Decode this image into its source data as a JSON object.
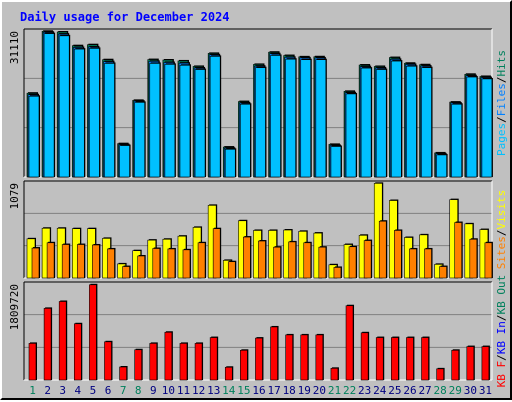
{
  "colors": {
    "background": "#c0c0c0",
    "grid": "#808080",
    "title": "#0000ff",
    "hits": "#00805c",
    "files": "#0080ff",
    "pages": "#00c0ff",
    "visits": "#ffff00",
    "sites": "#ff8000",
    "kbytes": "#ff0000",
    "kbin": "#0000ff",
    "kbout": "#00805c",
    "weekend": "#00805c",
    "weekday": "#000080"
  },
  "chart_data": [
    {
      "type": "bar",
      "title": "Daily usage for December 2024",
      "panel": "top",
      "ymax_label": "31110",
      "ymax": 31110,
      "legend": [
        "Pages",
        "Files",
        "Hits"
      ],
      "categories": [
        "1",
        "2",
        "3",
        "4",
        "5",
        "6",
        "7",
        "8",
        "9",
        "10",
        "11",
        "12",
        "13",
        "14",
        "15",
        "16",
        "17",
        "18",
        "19",
        "20",
        "21",
        "22",
        "23",
        "24",
        "25",
        "26",
        "27",
        "28",
        "29",
        "30",
        "31"
      ],
      "series": [
        {
          "name": "Hits",
          "color": "#00805c",
          "values": [
            17860,
            31050,
            30900,
            27980,
            28190,
            24990,
            7100,
            16330,
            25020,
            24930,
            24730,
            23560,
            26340,
            6380,
            16070,
            23990,
            26590,
            25880,
            25600,
            25620,
            6950,
            18250,
            23860,
            23550,
            25450,
            24240,
            23920,
            5130,
            15960,
            21880,
            21420
          ]
        },
        {
          "name": "Files",
          "color": "#0080ff",
          "values": [
            17530,
            30840,
            30450,
            27600,
            27720,
            24580,
            6900,
            16160,
            24640,
            24400,
            24260,
            23230,
            26040,
            6130,
            15770,
            23620,
            26270,
            25500,
            25380,
            25370,
            6720,
            17960,
            23520,
            23230,
            25070,
            23980,
            23640,
            4930,
            15770,
            21590,
            21190
          ]
        },
        {
          "name": "Pages",
          "color": "#00c0ff",
          "values": [
            17200,
            30550,
            30080,
            27250,
            27400,
            24200,
            6700,
            15900,
            24200,
            24000,
            23800,
            22900,
            25700,
            5900,
            15500,
            23300,
            25900,
            25100,
            25000,
            25000,
            6500,
            17700,
            23200,
            22900,
            24700,
            23600,
            23300,
            4700,
            15500,
            21300,
            20900
          ]
        }
      ]
    },
    {
      "type": "bar",
      "panel": "middle",
      "ymax_label": "1079",
      "ymax": 1079,
      "legend": [
        "Sites",
        "Visits"
      ],
      "categories": [
        "1",
        "2",
        "3",
        "4",
        "5",
        "6",
        "7",
        "8",
        "9",
        "10",
        "11",
        "12",
        "13",
        "14",
        "15",
        "16",
        "17",
        "18",
        "19",
        "20",
        "21",
        "22",
        "23",
        "24",
        "25",
        "26",
        "27",
        "28",
        "29",
        "30",
        "31"
      ],
      "series": [
        {
          "name": "Visits",
          "color": "#ffff00",
          "values": [
            445,
            565,
            565,
            560,
            560,
            450,
            160,
            310,
            430,
            440,
            475,
            575,
            825,
            200,
            650,
            540,
            540,
            545,
            530,
            510,
            150,
            380,
            485,
            1075,
            880,
            460,
            490,
            155,
            890,
            615,
            550
          ]
        },
        {
          "name": "Sites",
          "color": "#ff8000",
          "values": [
            340,
            400,
            380,
            380,
            375,
            330,
            130,
            250,
            335,
            330,
            320,
            400,
            560,
            185,
            465,
            420,
            350,
            410,
            400,
            350,
            120,
            355,
            425,
            645,
            540,
            330,
            330,
            130,
            630,
            440,
            400
          ]
        }
      ]
    },
    {
      "type": "bar",
      "panel": "bottom",
      "ymax_label": "1809720",
      "ymax": 1809720,
      "legend": [
        "KB F",
        "KB In",
        "KB Out"
      ],
      "categories": [
        "1",
        "2",
        "3",
        "4",
        "5",
        "6",
        "7",
        "8",
        "9",
        "10",
        "11",
        "12",
        "13",
        "14",
        "15",
        "16",
        "17",
        "18",
        "19",
        "20",
        "21",
        "22",
        "23",
        "24",
        "25",
        "26",
        "27",
        "28",
        "29",
        "30",
        "31"
      ],
      "series": [
        {
          "name": "KB F",
          "color": "#ff0000",
          "values": [
            690,
            1350,
            1480,
            1060,
            1795,
            720,
            245,
            570,
            690,
            900,
            690,
            690,
            800,
            240,
            560,
            790,
            1000,
            850,
            850,
            850,
            220,
            1400,
            890,
            800,
            800,
            800,
            800,
            210,
            560,
            630,
            630
          ]
        }
      ]
    }
  ],
  "day_labels": [
    "1",
    "2",
    "3",
    "4",
    "5",
    "6",
    "7",
    "8",
    "9",
    "10",
    "11",
    "12",
    "13",
    "14",
    "15",
    "16",
    "17",
    "18",
    "19",
    "20",
    "21",
    "22",
    "23",
    "24",
    "25",
    "26",
    "27",
    "28",
    "29",
    "30",
    "31"
  ],
  "weekend_days": [
    1,
    7,
    8,
    14,
    15,
    21,
    22,
    28,
    29
  ]
}
